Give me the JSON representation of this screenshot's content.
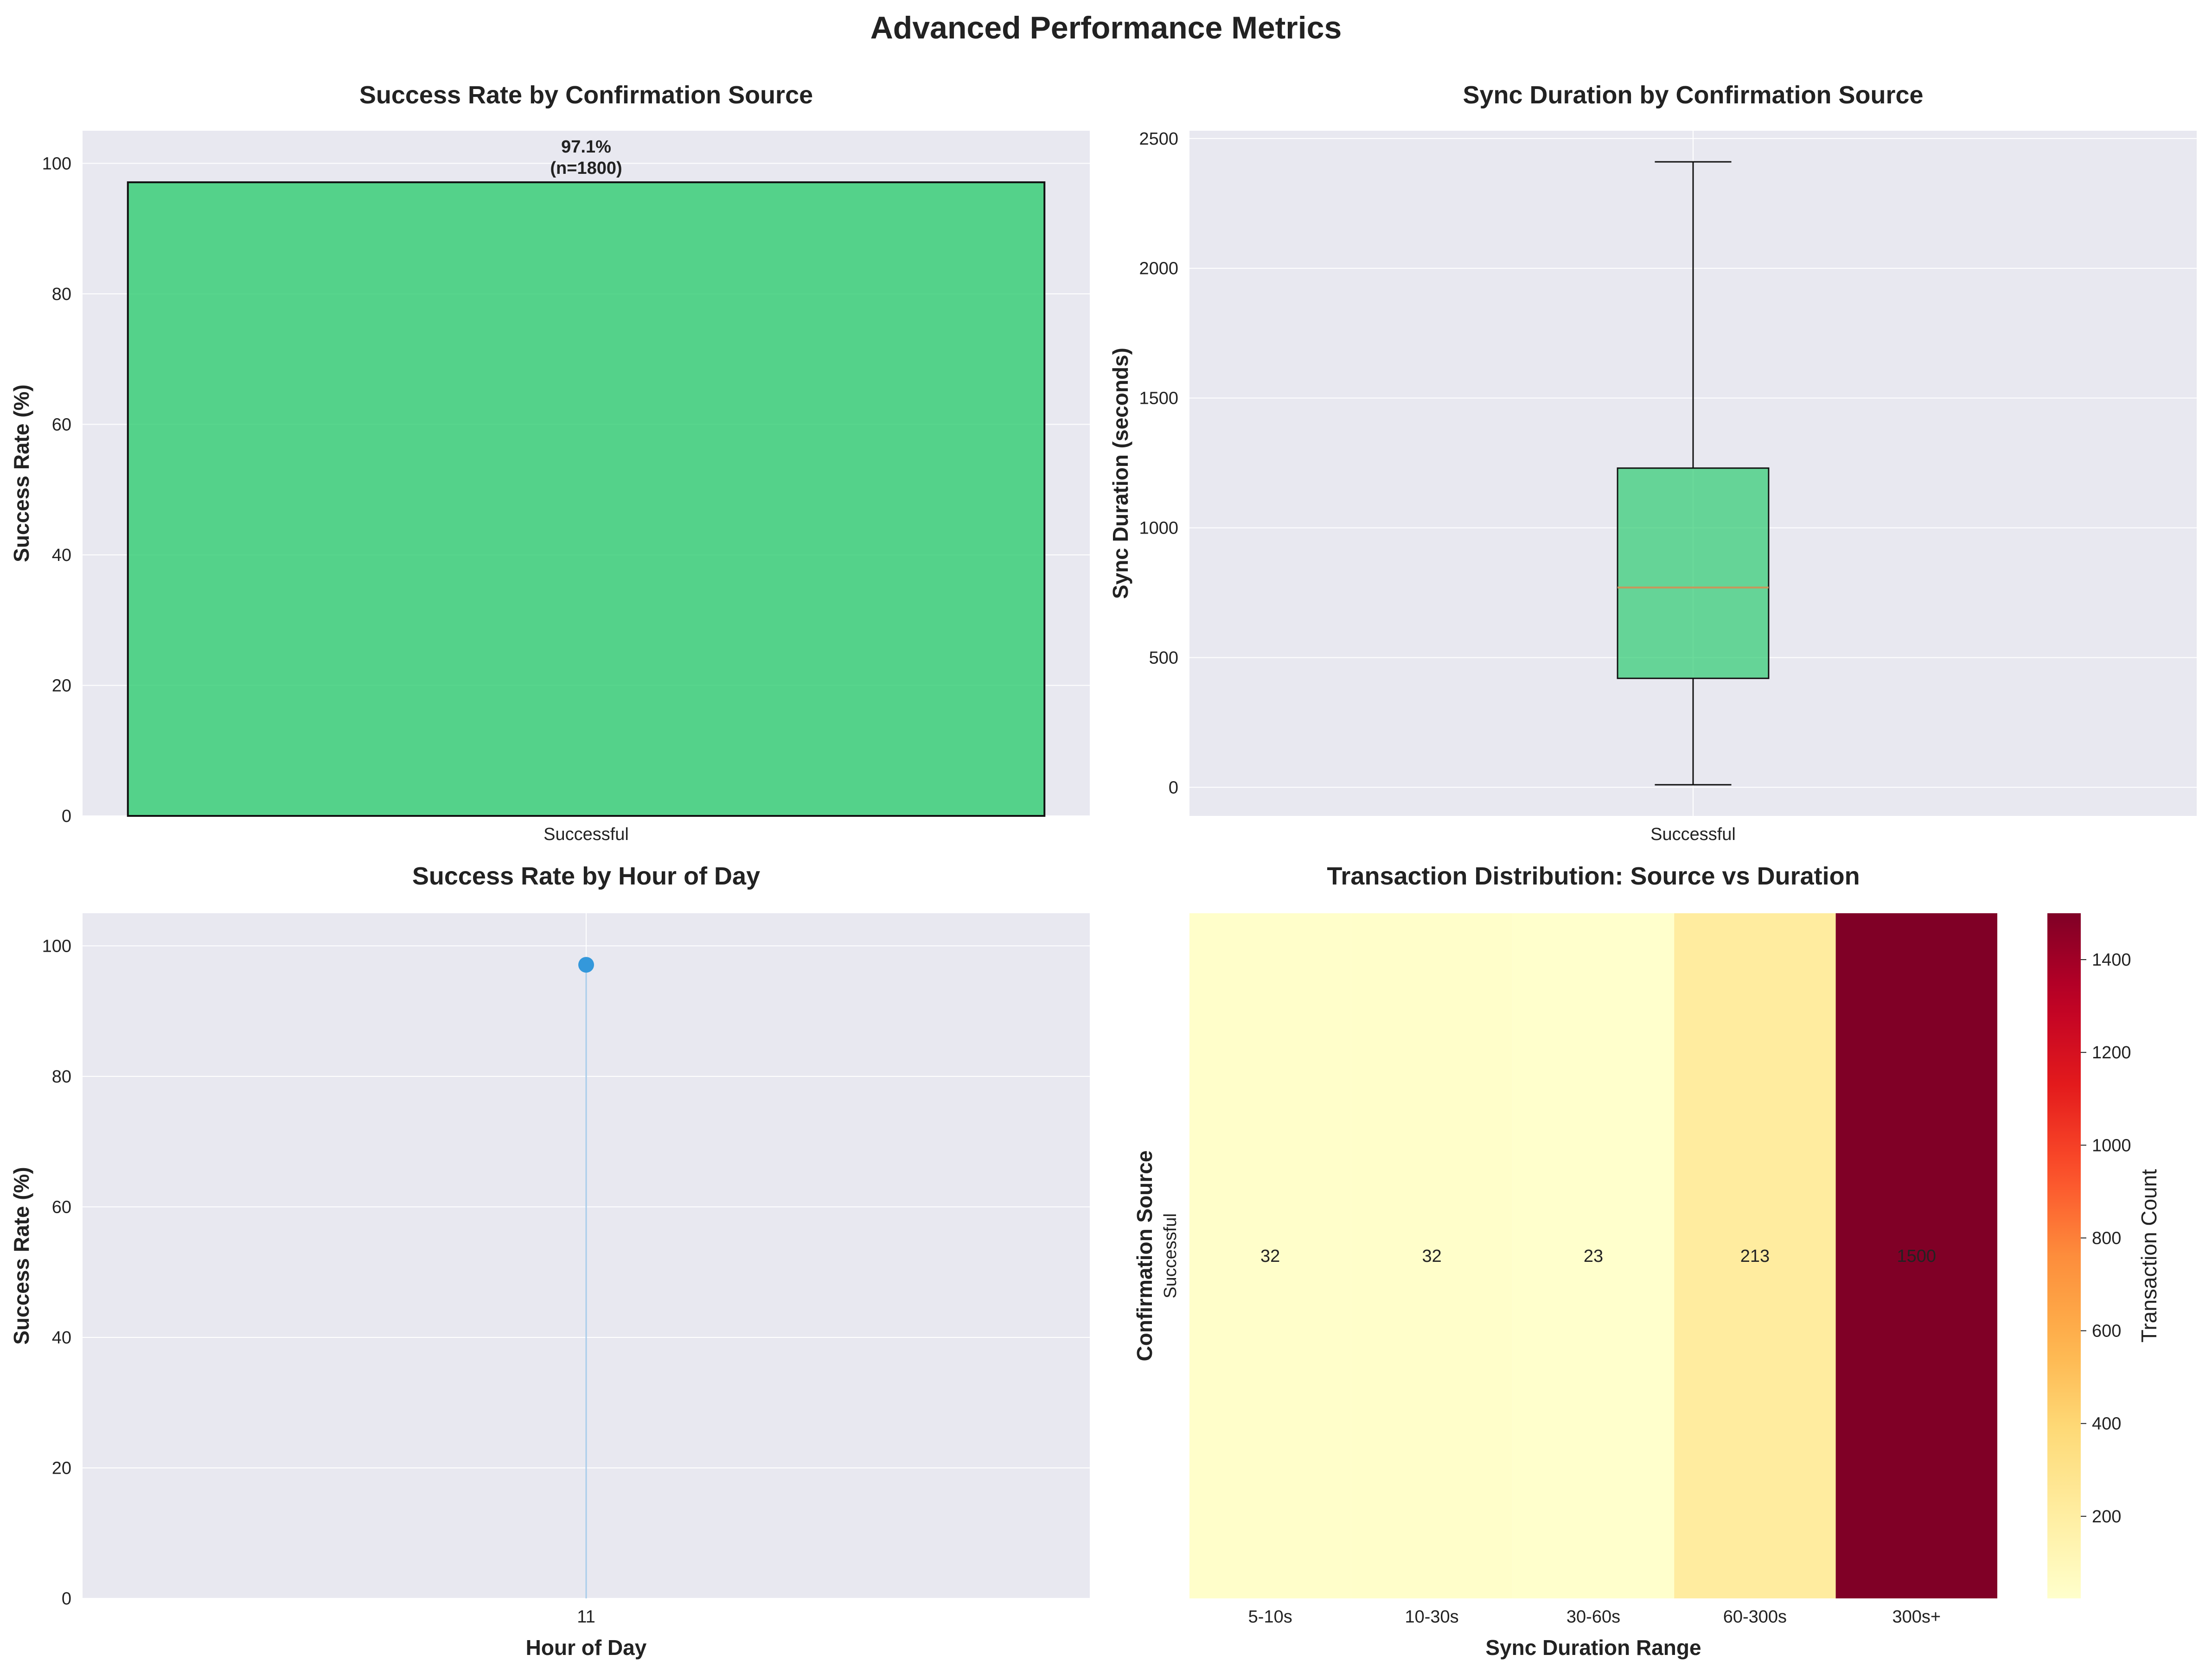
{
  "figure": {
    "title": "Advanced Performance Metrics"
  },
  "colors": {
    "axes_bg": "#e8e8f0",
    "grid": "#ffffff",
    "bar_green": "#2ecc71",
    "box_green": "#2ecc71",
    "median": "#c8965a",
    "line_blue": "#3498db",
    "line_light": "#a9cdeb"
  },
  "chart_data": [
    {
      "type": "bar",
      "title": "Success Rate by Confirmation Source",
      "xlabel": "",
      "ylabel": "Success Rate (%)",
      "categories": [
        "Successful"
      ],
      "values": [
        97.1
      ],
      "bar_labels": [
        "97.1%\n(n=1800)"
      ],
      "ylim": [
        0,
        105
      ],
      "yticks": [
        0,
        20,
        40,
        60,
        80,
        100
      ],
      "grid": true
    },
    {
      "type": "box",
      "title": "Sync Duration by Confirmation Source",
      "xlabel": "",
      "ylabel": "Sync Duration (seconds)",
      "categories": [
        "Successful"
      ],
      "boxes": [
        {
          "whisker_low": 10,
          "q1": 420,
          "median": 770,
          "q3": 1230,
          "whisker_high": 2410
        }
      ],
      "ylim": [
        -110,
        2530
      ],
      "yticks": [
        0,
        500,
        1000,
        1500,
        2000,
        2500
      ],
      "grid": true
    },
    {
      "type": "line",
      "title": "Success Rate by Hour of Day",
      "xlabel": "Hour of Day",
      "ylabel": "Success Rate (%)",
      "x": [
        11
      ],
      "y": [
        97.1
      ],
      "xticks": [
        "11"
      ],
      "ylim": [
        0,
        105
      ],
      "yticks": [
        0,
        20,
        40,
        60,
        80,
        100
      ],
      "grid": true
    },
    {
      "type": "heatmap",
      "title": "Transaction Distribution: Source vs Duration",
      "xlabel": "Sync Duration Range",
      "ylabel": "Confirmation Source",
      "rows": [
        "Successful"
      ],
      "columns": [
        "5-10s",
        "10-30s",
        "30-60s",
        "60-300s",
        "300s+"
      ],
      "values": [
        [
          32,
          32,
          23,
          213,
          1500
        ]
      ],
      "colorbar_label": "Transaction Count",
      "colorbar_ticks": [
        200,
        400,
        600,
        800,
        1000,
        1200,
        1400
      ],
      "vmin": 23,
      "vmax": 1500,
      "colormap": "YlOrRd"
    }
  ]
}
